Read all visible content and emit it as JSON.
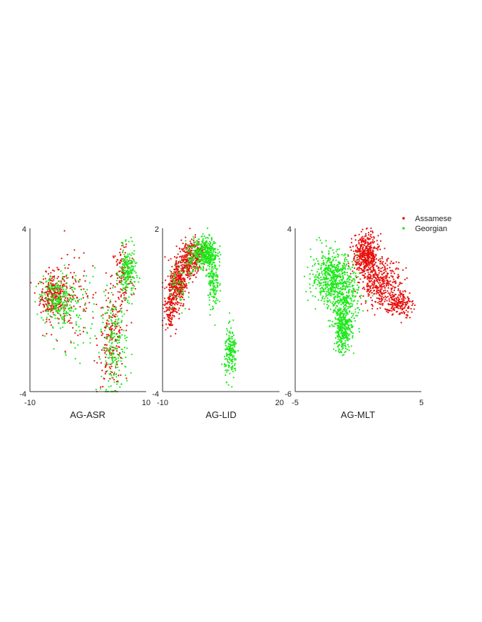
{
  "figure": {
    "legend": {
      "placement": "top-right",
      "entries": [
        {
          "label": "Assamese",
          "color": "#e8100c"
        },
        {
          "label": "Georgian",
          "color": "#1fe81c"
        }
      ]
    }
  },
  "chart_data": [
    {
      "type": "scatter",
      "title": "",
      "xlabel": "AG-ASR",
      "ylabel": "",
      "xlim": [
        -10,
        10
      ],
      "ylim": [
        -4,
        4
      ],
      "x_tick_labels": [
        "-10",
        "10"
      ],
      "y_tick_labels": [
        "-4",
        "4"
      ],
      "grid": false,
      "series": [
        {
          "name": "Assamese",
          "color": "#e8100c",
          "point_count": 700,
          "clusters": [
            {
              "center": [
                -6.0,
                0.7
              ],
              "spread": [
                1.1,
                0.55
              ],
              "weight": 0.38
            },
            {
              "center": [
                -3.0,
                0.6
              ],
              "spread": [
                2.4,
                1.0
              ],
              "weight": 0.18
            },
            {
              "center": [
                4.0,
                -1.5
              ],
              "spread": [
                1.1,
                1.1
              ],
              "weight": 0.26
            },
            {
              "center": [
                6.0,
                1.6
              ],
              "spread": [
                1.0,
                0.9
              ],
              "weight": 0.18
            }
          ]
        },
        {
          "name": "Georgian",
          "color": "#1fe81c",
          "point_count": 700,
          "clusters": [
            {
              "center": [
                -5.5,
                0.5
              ],
              "spread": [
                1.3,
                0.6
              ],
              "weight": 0.28
            },
            {
              "center": [
                -2.5,
                0.0
              ],
              "spread": [
                2.2,
                1.0
              ],
              "weight": 0.14
            },
            {
              "center": [
                4.5,
                -1.8
              ],
              "spread": [
                1.1,
                1.2
              ],
              "weight": 0.28
            },
            {
              "center": [
                6.8,
                1.8
              ],
              "spread": [
                0.7,
                0.6
              ],
              "weight": 0.3
            }
          ]
        }
      ]
    },
    {
      "type": "scatter",
      "title": "",
      "xlabel": "AG-LID",
      "ylabel": "",
      "xlim": [
        -10,
        20
      ],
      "ylim": [
        -4,
        2
      ],
      "x_tick_labels": [
        "-10",
        "20"
      ],
      "y_tick_labels": [
        "-4",
        "2"
      ],
      "grid": false,
      "series": [
        {
          "name": "Assamese",
          "color": "#e8100c",
          "point_count": 800,
          "clusters": [
            {
              "center": [
                -8.0,
                -0.8
              ],
              "spread": [
                0.8,
                0.5
              ],
              "weight": 0.22
            },
            {
              "center": [
                -6.0,
                0.0
              ],
              "spread": [
                1.0,
                0.45
              ],
              "weight": 0.35
            },
            {
              "center": [
                -3.5,
                0.8
              ],
              "spread": [
                1.2,
                0.35
              ],
              "weight": 0.3
            },
            {
              "center": [
                -1.0,
                1.1
              ],
              "spread": [
                1.0,
                0.25
              ],
              "weight": 0.13
            }
          ]
        },
        {
          "name": "Georgian",
          "color": "#1fe81c",
          "point_count": 800,
          "clusters": [
            {
              "center": [
                1.0,
                1.1
              ],
              "spread": [
                1.5,
                0.28
              ],
              "weight": 0.48
            },
            {
              "center": [
                3.0,
                0.0
              ],
              "spread": [
                0.7,
                0.5
              ],
              "weight": 0.18
            },
            {
              "center": [
                7.5,
                -2.6
              ],
              "spread": [
                0.8,
                0.45
              ],
              "weight": 0.22
            },
            {
              "center": [
                -6.0,
                -0.2
              ],
              "spread": [
                1.2,
                0.5
              ],
              "weight": 0.06
            },
            {
              "center": [
                -3.0,
                0.9
              ],
              "spread": [
                1.0,
                0.3
              ],
              "weight": 0.06
            }
          ]
        }
      ]
    },
    {
      "type": "scatter",
      "title": "",
      "xlabel": "AG-MLT",
      "ylabel": "",
      "xlim": [
        -5,
        5
      ],
      "ylim": [
        -6,
        4
      ],
      "x_tick_labels": [
        "-5",
        "5"
      ],
      "y_tick_labels": [
        "-6",
        "4"
      ],
      "grid": false,
      "series": [
        {
          "name": "Assamese",
          "color": "#e8100c",
          "point_count": 1000,
          "clusters": [
            {
              "center": [
                0.6,
                2.4
              ],
              "spread": [
                0.5,
                0.6
              ],
              "weight": 0.45
            },
            {
              "center": [
                1.8,
                0.6
              ],
              "spread": [
                0.8,
                0.7
              ],
              "weight": 0.38
            },
            {
              "center": [
                3.3,
                -0.6
              ],
              "spread": [
                0.5,
                0.4
              ],
              "weight": 0.17
            }
          ]
        },
        {
          "name": "Georgian",
          "color": "#1fe81c",
          "point_count": 1100,
          "clusters": [
            {
              "center": [
                -2.1,
                1.0
              ],
              "spread": [
                0.8,
                0.8
              ],
              "weight": 0.48
            },
            {
              "center": [
                -1.0,
                -0.4
              ],
              "spread": [
                0.6,
                0.8
              ],
              "weight": 0.22
            },
            {
              "center": [
                -1.2,
                -2.2
              ],
              "spread": [
                0.35,
                0.7
              ],
              "weight": 0.3
            }
          ]
        }
      ]
    }
  ]
}
